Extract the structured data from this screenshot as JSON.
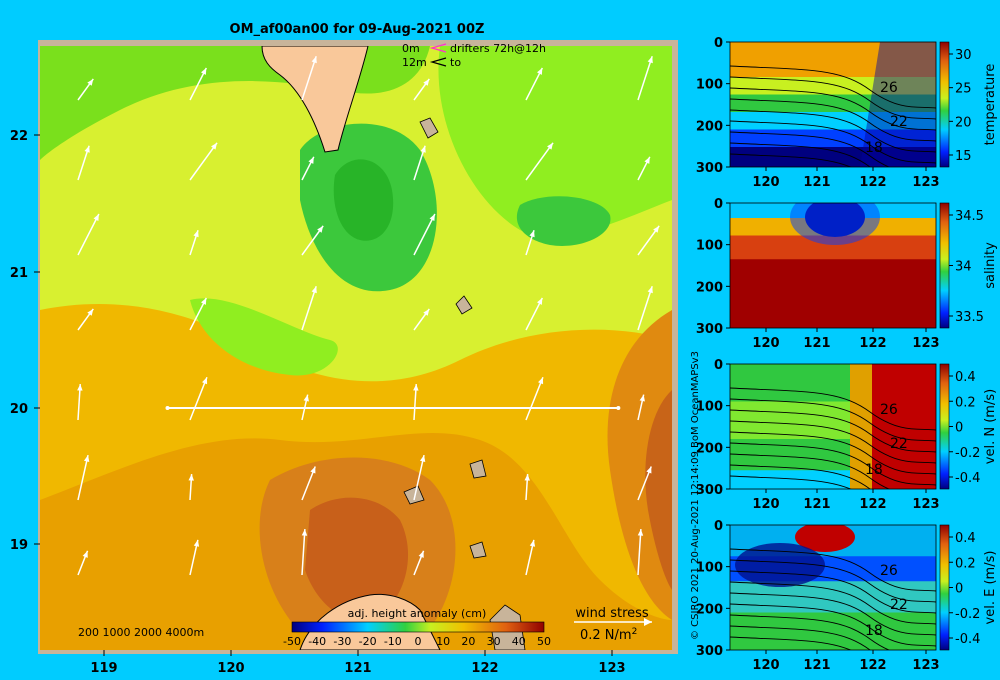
{
  "title": "OM_af00an00 for 09-Aug-2021 00Z",
  "legend": {
    "depth_top": "0m",
    "depth_bottom": "12m",
    "drifters": "drifters 72h@12h",
    "to": "to"
  },
  "map": {
    "x_ticks": [
      "119",
      "120",
      "121",
      "122",
      "123"
    ],
    "y_ticks": [
      "22",
      "21",
      "20",
      "19"
    ],
    "bathy_labels": "200  1000  2000  4000m",
    "section_line": {
      "lon_start": 119.5,
      "lon_end": 123.05,
      "lat": 20.0
    }
  },
  "colorbar": {
    "title": "adj. height anomaly (cm)",
    "ticks": [
      "-50",
      "-40",
      "-30",
      "-20",
      "-10",
      "0",
      "10",
      "20",
      "30",
      "40",
      "50"
    ]
  },
  "wind": {
    "title": "wind stress",
    "scale": "0.2 N/m",
    "scale_sup": "2"
  },
  "credit": "© CSIRO 2021   20-Aug-2021 12:14:09 BoM OceanMAPSv3",
  "panels": [
    {
      "name": "temperature",
      "label": "temperature",
      "x_ticks": [
        "120",
        "121",
        "122",
        "123"
      ],
      "y_ticks": [
        "0",
        "100",
        "200",
        "300"
      ],
      "cbar_ticks": [
        "30",
        "25",
        "20",
        "15"
      ],
      "contour_labels": [
        "26",
        "22",
        "18"
      ]
    },
    {
      "name": "salinity",
      "label": "salinity",
      "x_ticks": [
        "120",
        "121",
        "122",
        "123"
      ],
      "y_ticks": [
        "0",
        "100",
        "200",
        "300"
      ],
      "cbar_ticks": [
        "34.5",
        "34",
        "33.5"
      ],
      "contour_labels": []
    },
    {
      "name": "vel-n",
      "label": "vel. N (m/s)",
      "x_ticks": [
        "120",
        "121",
        "122",
        "123"
      ],
      "y_ticks": [
        "0",
        "100",
        "200",
        "300"
      ],
      "cbar_ticks": [
        "0.4",
        "0.2",
        "0",
        "-0.2",
        "-0.4"
      ],
      "contour_labels": [
        "26",
        "22",
        "18"
      ]
    },
    {
      "name": "vel-e",
      "label": "vel. E (m/s)",
      "x_ticks": [
        "120",
        "121",
        "122",
        "123"
      ],
      "y_ticks": [
        "0",
        "100",
        "200",
        "300"
      ],
      "cbar_ticks": [
        "0.4",
        "0.2",
        "0",
        "-0.2",
        "-0.4"
      ],
      "contour_labels": [
        "26",
        "22",
        "18"
      ]
    }
  ],
  "colors": {
    "background": "#00ccff",
    "land": "#f9c89a",
    "shelf": "#c8b49a",
    "anomaly_high": "#c8601a",
    "anomaly_low": "#28b428"
  }
}
